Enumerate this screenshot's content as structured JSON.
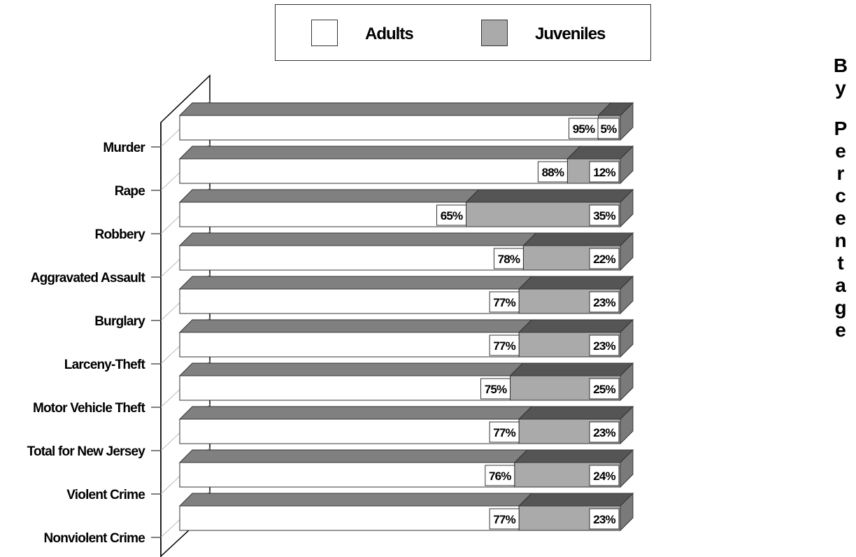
{
  "chart_data": {
    "type": "bar",
    "stacked": true,
    "orientation": "horizontal",
    "percent": true,
    "xlim": [
      0,
      100
    ],
    "categories": [
      "Murder",
      "Rape",
      "Robbery",
      "Aggravated Assault",
      "Burglary",
      "Larceny-Theft",
      "Motor Vehicle Theft",
      "Total for New Jersey",
      "Violent Crime",
      "Nonviolent Crime"
    ],
    "series": [
      {
        "name": "Adults",
        "values": [
          95,
          88,
          65,
          78,
          77,
          77,
          75,
          77,
          76,
          77
        ],
        "labels": [
          "95%",
          "88%",
          "65%",
          "78%",
          "77%",
          "77%",
          "75%",
          "77%",
          "76%",
          "77%"
        ]
      },
      {
        "name": "Juveniles",
        "values": [
          5,
          12,
          35,
          22,
          23,
          23,
          25,
          23,
          24,
          23
        ],
        "labels": [
          "5%",
          "12%",
          "35%",
          "22%",
          "23%",
          "23%",
          "25%",
          "23%",
          "24%",
          "23%"
        ]
      }
    ],
    "legend_position": "top-center",
    "side_title": "By Percentage"
  },
  "colors": {
    "adults_fill": "#ffffff",
    "juveniles_fill": "#aaaaaa",
    "adults_top": "#808080",
    "juveniles_top": "#555555",
    "bar_side": "#7a7a7a",
    "outline": "#333333"
  }
}
